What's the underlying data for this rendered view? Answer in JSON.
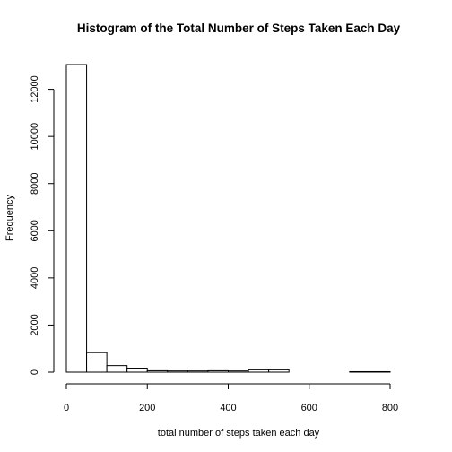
{
  "chart_data": {
    "type": "bar",
    "title": "Histogram of the Total Number of Steps Taken Each Day",
    "xlabel": "total number of steps taken each day",
    "ylabel": "Frequency",
    "xlim": [
      0,
      850
    ],
    "ylim": [
      0,
      13050
    ],
    "x_ticks": [
      0,
      200,
      400,
      600,
      800
    ],
    "y_ticks": [
      0,
      2000,
      4000,
      6000,
      8000,
      10000,
      12000
    ],
    "bin_edges": [
      0,
      50,
      100,
      150,
      200,
      250,
      300,
      350,
      400,
      450,
      500,
      550,
      600,
      650,
      700,
      750,
      800
    ],
    "values": [
      13050,
      830,
      280,
      170,
      60,
      50,
      50,
      60,
      50,
      100,
      100,
      0,
      0,
      0,
      20,
      20
    ],
    "grid": false,
    "legend": "none"
  }
}
